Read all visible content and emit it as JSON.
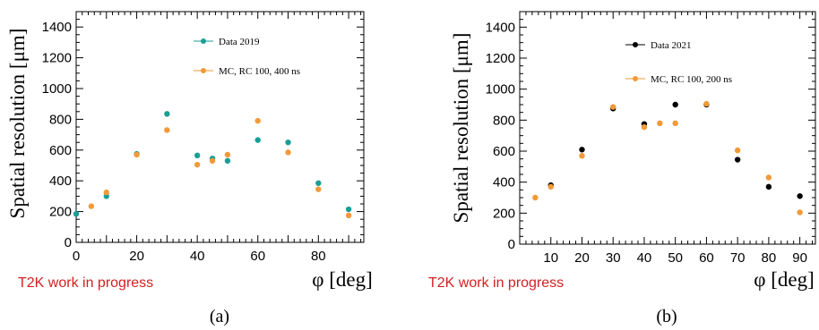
{
  "chart_data": [
    {
      "type": "scatter",
      "panel_label": "(a)",
      "watermark": "T2K work in progress",
      "xlabel": "φ [deg]",
      "ylabel": "Spatial resolution [μm]",
      "xlim": [
        0,
        95
      ],
      "ylim": [
        0,
        1500
      ],
      "xticks": [
        0,
        20,
        40,
        60,
        80
      ],
      "yticks": [
        0,
        200,
        400,
        600,
        800,
        1000,
        1200,
        1400
      ],
      "grid": false,
      "legend_position": "top-right",
      "series": [
        {
          "name": "Data 2019",
          "color": "#1a9e96",
          "points": [
            [
              0,
              185
            ],
            [
              10,
              300
            ],
            [
              20,
              575
            ],
            [
              30,
              835
            ],
            [
              40,
              565
            ],
            [
              45,
              545
            ],
            [
              50,
              530
            ],
            [
              60,
              665
            ],
            [
              70,
              650
            ],
            [
              80,
              385
            ],
            [
              90,
              215
            ]
          ]
        },
        {
          "name": "MC, RC 100, 400 ns",
          "color": "#f29a38",
          "points": [
            [
              5,
              235
            ],
            [
              10,
              325
            ],
            [
              20,
              570
            ],
            [
              30,
              730
            ],
            [
              40,
              505
            ],
            [
              45,
              530
            ],
            [
              50,
              570
            ],
            [
              60,
              790
            ],
            [
              70,
              585
            ],
            [
              80,
              345
            ],
            [
              90,
              175
            ]
          ]
        }
      ]
    },
    {
      "type": "scatter",
      "panel_label": "(b)",
      "watermark": "T2K work in progress",
      "xlabel": "φ [deg]",
      "ylabel": "Spatial resolution [μm]",
      "xlim": [
        0,
        95
      ],
      "ylim": [
        0,
        1500
      ],
      "xticks": [
        10,
        20,
        30,
        40,
        50,
        60,
        70,
        80,
        90
      ],
      "yticks": [
        0,
        200,
        400,
        600,
        800,
        1000,
        1200,
        1400
      ],
      "grid": false,
      "legend_position": "top-right",
      "series": [
        {
          "name": "Data 2021",
          "color": "#000000",
          "points": [
            [
              10,
              380
            ],
            [
              20,
              610
            ],
            [
              30,
              875
            ],
            [
              40,
              775
            ],
            [
              50,
              900
            ],
            [
              60,
              900
            ],
            [
              70,
              545
            ],
            [
              80,
              370
            ],
            [
              90,
              310
            ]
          ]
        },
        {
          "name": "MC, RC 100, 200 ns",
          "color": "#f29a38",
          "points": [
            [
              5,
              300
            ],
            [
              10,
              370
            ],
            [
              20,
              570
            ],
            [
              30,
              885
            ],
            [
              40,
              755
            ],
            [
              45,
              780
            ],
            [
              50,
              780
            ],
            [
              60,
              905
            ],
            [
              70,
              605
            ],
            [
              80,
              430
            ],
            [
              90,
              205
            ]
          ]
        }
      ]
    }
  ]
}
